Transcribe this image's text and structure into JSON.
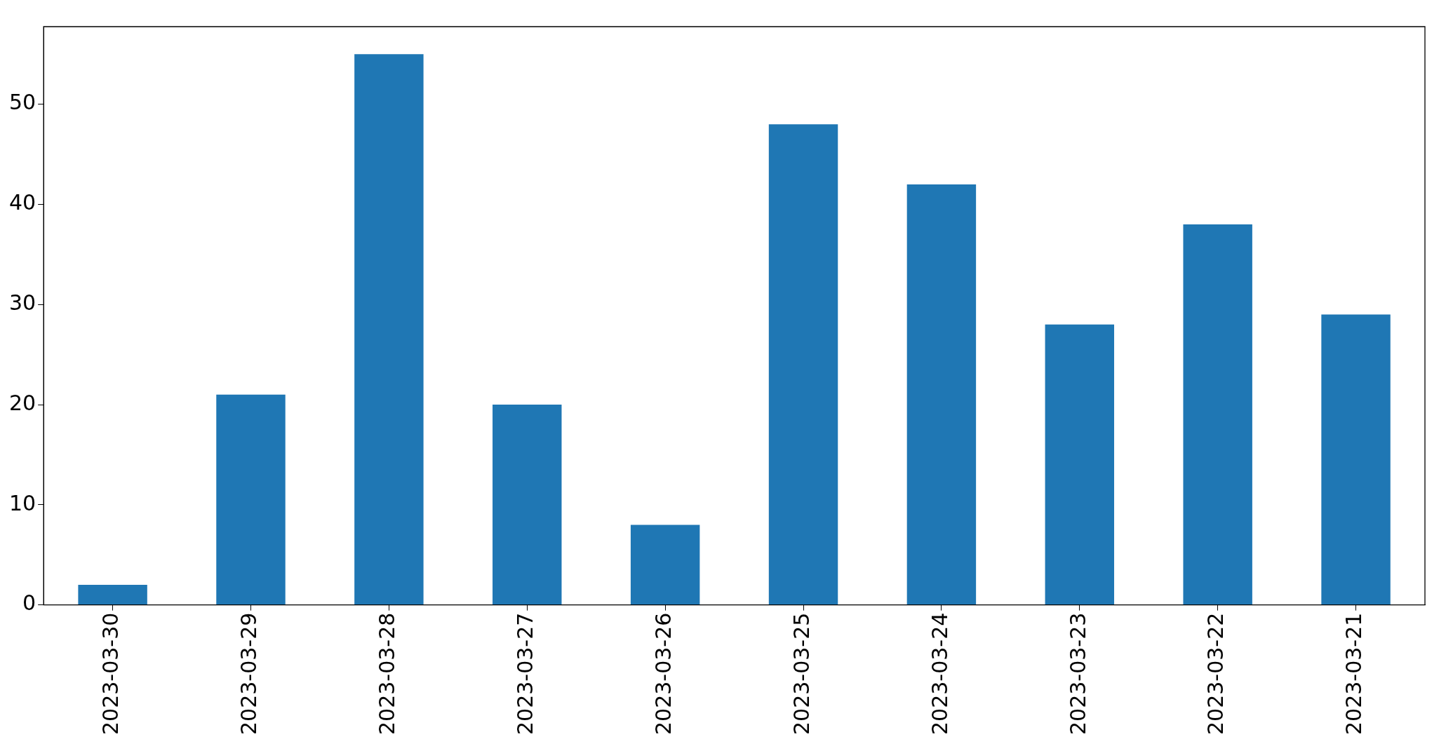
{
  "chart_data": {
    "type": "bar",
    "categories": [
      "2023-03-30",
      "2023-03-29",
      "2023-03-28",
      "2023-03-27",
      "2023-03-26",
      "2023-03-25",
      "2023-03-24",
      "2023-03-23",
      "2023-03-22",
      "2023-03-21"
    ],
    "values": [
      2,
      21,
      55,
      20,
      8,
      48,
      42,
      28,
      38,
      29
    ],
    "color": "#1f77b4",
    "ylim": [
      0,
      57.75
    ],
    "yticks": [
      0,
      10,
      20,
      30,
      40,
      50
    ],
    "grid": false,
    "legend": false
  }
}
